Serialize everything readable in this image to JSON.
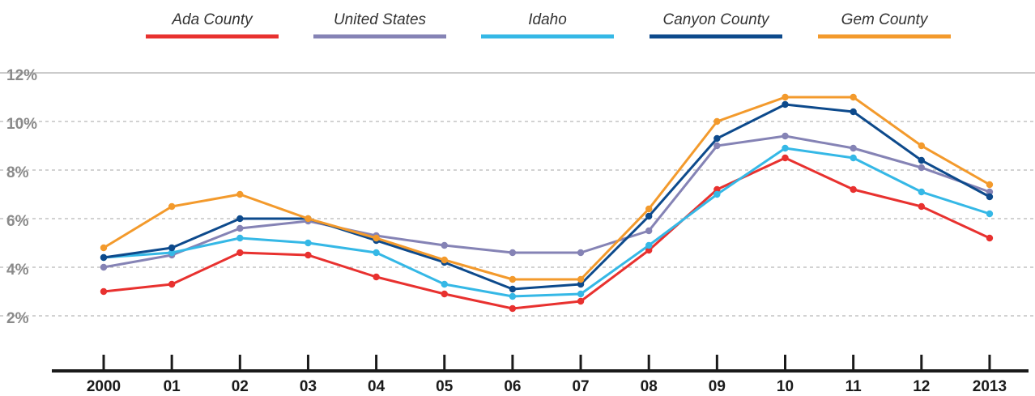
{
  "chart_data": {
    "type": "line",
    "title": "",
    "xlabel": "",
    "ylabel": "",
    "x": [
      "2000",
      "01",
      "02",
      "03",
      "04",
      "05",
      "06",
      "07",
      "08",
      "09",
      "10",
      "11",
      "12",
      "2013"
    ],
    "ylim": [
      0,
      12
    ],
    "yticks": [
      2,
      4,
      6,
      8,
      10,
      12
    ],
    "ytick_labels": [
      "2%",
      "4%",
      "6%",
      "8%",
      "10%",
      "12%"
    ],
    "grid": true,
    "legend_placement": "top",
    "series": [
      {
        "name": "Ada County",
        "color": "#e8312f",
        "values": [
          3.0,
          3.3,
          4.6,
          4.5,
          3.6,
          2.9,
          2.3,
          2.6,
          4.7,
          7.2,
          8.5,
          7.2,
          6.5,
          5.2
        ]
      },
      {
        "name": "United States",
        "color": "#8583b5",
        "values": [
          4.0,
          4.5,
          5.6,
          5.9,
          5.3,
          4.9,
          4.6,
          4.6,
          5.5,
          9.0,
          9.4,
          8.9,
          8.1,
          7.1
        ]
      },
      {
        "name": "Idaho",
        "color": "#35b8e6",
        "values": [
          4.4,
          4.6,
          5.2,
          5.0,
          4.6,
          3.3,
          2.8,
          2.9,
          4.9,
          7.0,
          8.9,
          8.5,
          7.1,
          6.2
        ]
      },
      {
        "name": "Canyon County",
        "color": "#0d4a8c",
        "values": [
          4.4,
          4.8,
          6.0,
          6.0,
          5.1,
          4.2,
          3.1,
          3.3,
          6.1,
          9.3,
          10.7,
          10.4,
          8.4,
          6.9
        ]
      },
      {
        "name": "Gem County",
        "color": "#f39a2c",
        "values": [
          4.8,
          6.5,
          7.0,
          6.0,
          5.2,
          4.3,
          3.5,
          3.5,
          6.4,
          10.0,
          11.0,
          11.0,
          9.0,
          7.4
        ]
      }
    ]
  }
}
